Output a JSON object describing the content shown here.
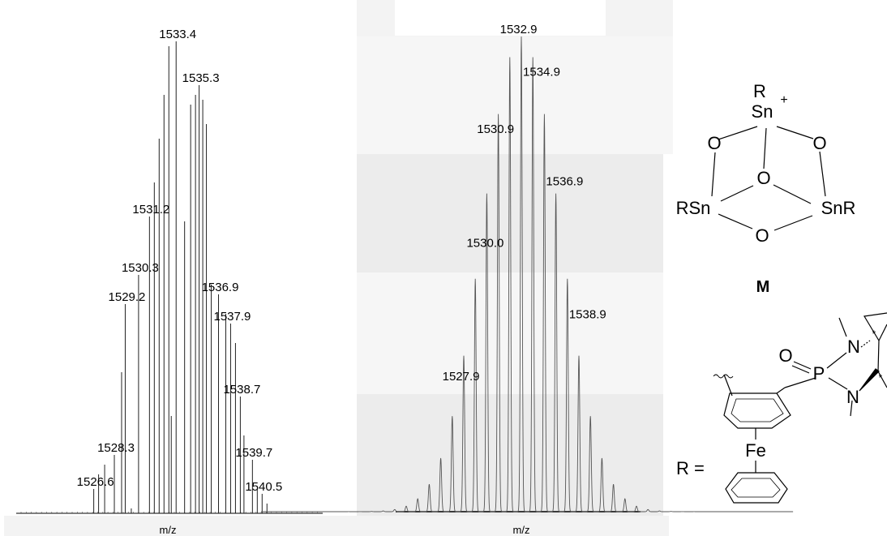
{
  "chart_data": [
    {
      "type": "bar",
      "title": "",
      "xlabel": "m/z",
      "ylabel": "",
      "x": [
        1526.6,
        1527.0,
        1527.5,
        1528.3,
        1528.9,
        1529.2,
        1529.7,
        1530.3,
        1530.7,
        1531.2,
        1531.6,
        1532.0,
        1532.4,
        1532.8,
        1533.0,
        1533.4,
        1534.1,
        1534.6,
        1535.0,
        1535.3,
        1535.6,
        1535.9,
        1536.3,
        1536.9,
        1537.5,
        1537.9,
        1538.3,
        1538.7,
        1539.0,
        1539.7,
        1540.1,
        1540.5,
        1540.9
      ],
      "values": [
        5,
        8,
        10,
        12,
        29,
        43,
        1,
        49,
        0,
        61,
        68,
        77,
        86,
        96,
        20,
        97,
        60,
        84,
        86,
        88,
        85,
        80,
        47,
        45,
        41,
        39,
        35,
        24,
        16,
        11,
        5,
        4,
        2
      ],
      "labels": [
        {
          "text": "1533.4",
          "x": 1533.4
        },
        {
          "text": "1535.3",
          "x": 1535.3
        },
        {
          "text": "1531.2",
          "x": 1531.2
        },
        {
          "text": "1530.3",
          "x": 1530.3
        },
        {
          "text": "1536.9",
          "x": 1536.9
        },
        {
          "text": "1537.9",
          "x": 1537.9
        },
        {
          "text": "1529.2",
          "x": 1529.2
        },
        {
          "text": "1538.7",
          "x": 1538.7
        },
        {
          "text": "1528.3",
          "x": 1528.3
        },
        {
          "text": "1539.7",
          "x": 1539.7
        },
        {
          "text": "1526.6",
          "x": 1526.6
        },
        {
          "text": "1540.5",
          "x": 1540.5
        }
      ]
    },
    {
      "type": "line",
      "title": "",
      "xlabel": "m/z",
      "ylabel": "",
      "envelope_center": 1533.0,
      "peaks": [
        {
          "x": 1532.9,
          "y": 100,
          "label": "1532.9"
        },
        {
          "x": 1534.9,
          "y": 91,
          "label": "1534.9"
        },
        {
          "x": 1530.9,
          "y": 79,
          "label": "1530.9"
        },
        {
          "x": 1536.9,
          "y": 68,
          "label": "1536.9"
        },
        {
          "x": 1530.0,
          "y": 55,
          "label": "1530.0"
        },
        {
          "x": 1538.9,
          "y": 40,
          "label": "1538.9"
        },
        {
          "x": 1527.9,
          "y": 27,
          "label": "1527.9"
        }
      ]
    }
  ],
  "structure_m": {
    "atoms": [
      "R",
      "Sn",
      "+",
      "O",
      "O",
      "O",
      "RSn",
      "SnR",
      "O"
    ],
    "caption": "M"
  },
  "structure_r": {
    "prefix": "R =",
    "atoms": [
      "N",
      "O",
      "P",
      "N",
      "Fe"
    ],
    "stars": [
      "*",
      "*"
    ]
  }
}
